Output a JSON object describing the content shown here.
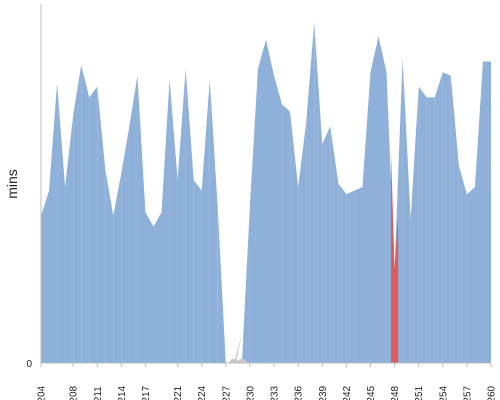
{
  "chart_data": {
    "type": "area",
    "ylabel": "mins",
    "y_tick_labels": [
      "0"
    ],
    "ylim": [
      0,
      100
    ],
    "grid": false,
    "colors": {
      "pass": "#8eb0d9",
      "fail": "#e05a56",
      "aborted": "#c8c8c8",
      "axis": "#bcbcbc"
    },
    "x": [
      "#204",
      "#205",
      "#206",
      "#207",
      "#208",
      "#209",
      "#210",
      "#211",
      "#212",
      "#213",
      "#214",
      "#215",
      "#216",
      "#217",
      "#218",
      "#219",
      "#220",
      "#221",
      "#222",
      "#223",
      "#224",
      "#225",
      "#226",
      "#227",
      "#228",
      "#229",
      "#230",
      "#231",
      "#232",
      "#233",
      "#234",
      "#235",
      "#236",
      "#237",
      "#238",
      "#239",
      "#240",
      "#241",
      "#242",
      "#243",
      "#244",
      "#245",
      "#246",
      "#247",
      "#248",
      "#249",
      "#250",
      "#251",
      "#252",
      "#253",
      "#254",
      "#255",
      "#256",
      "#257",
      "#258",
      "#259",
      "#260"
    ],
    "x_tick_labels": [
      "#204",
      "#208",
      "#211",
      "#214",
      "#217",
      "#221",
      "#224",
      "#227",
      "#230",
      "#233",
      "#236",
      "#239",
      "#242",
      "#245",
      "#248",
      "#251",
      "#254",
      "#257",
      "#260"
    ],
    "values": [
      41,
      48,
      78,
      49,
      69,
      83,
      74,
      77,
      54,
      41,
      53,
      66,
      80,
      42,
      38,
      42,
      79,
      51,
      82,
      51,
      48,
      79,
      43,
      0,
      0,
      0,
      44,
      82,
      90,
      80,
      72,
      70,
      49,
      67,
      95,
      61,
      66,
      50,
      47,
      48,
      49,
      81,
      91,
      81,
      26,
      85,
      40,
      77,
      74,
      74,
      81,
      80,
      55,
      47,
      49,
      84,
      84
    ],
    "status": [
      "pass",
      "pass",
      "pass",
      "pass",
      "pass",
      "pass",
      "pass",
      "pass",
      "pass",
      "pass",
      "pass",
      "pass",
      "pass",
      "pass",
      "pass",
      "pass",
      "pass",
      "pass",
      "pass",
      "pass",
      "pass",
      "pass",
      "pass",
      "pass",
      "aborted",
      "aborted",
      "pass",
      "pass",
      "pass",
      "pass",
      "pass",
      "pass",
      "pass",
      "pass",
      "pass",
      "pass",
      "pass",
      "pass",
      "pass",
      "pass",
      "pass",
      "pass",
      "pass",
      "pass",
      "fail",
      "pass",
      "pass",
      "pass",
      "pass",
      "pass",
      "pass",
      "pass",
      "pass",
      "pass",
      "pass",
      "pass",
      "pass"
    ]
  }
}
